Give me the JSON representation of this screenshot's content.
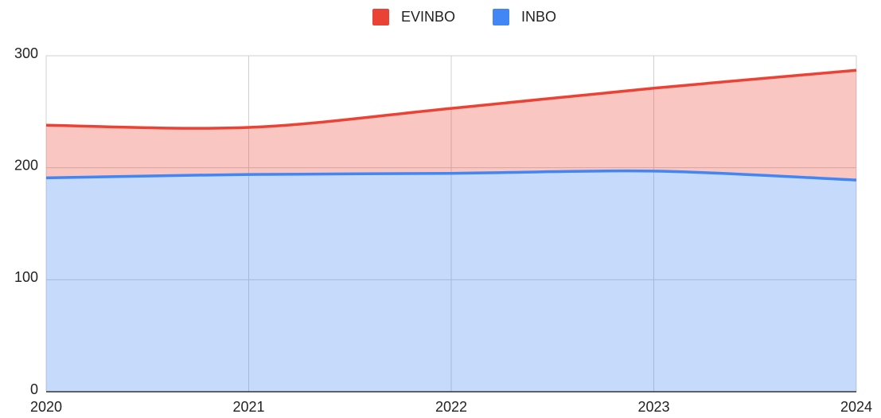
{
  "chart_data": {
    "type": "stacked_area",
    "categories": [
      "2020",
      "2021",
      "2022",
      "2023",
      "2024"
    ],
    "series": [
      {
        "name": "INBO",
        "color": "#4285f4",
        "values": [
          191,
          194,
          195,
          197,
          189
        ]
      },
      {
        "name": "EVINBO",
        "color": "#ea4335",
        "values": [
          47,
          42,
          58,
          74,
          98
        ]
      }
    ],
    "ylim": [
      0,
      300
    ],
    "yticks": [
      0,
      100,
      200,
      300
    ],
    "grid": true,
    "legend": "top"
  }
}
